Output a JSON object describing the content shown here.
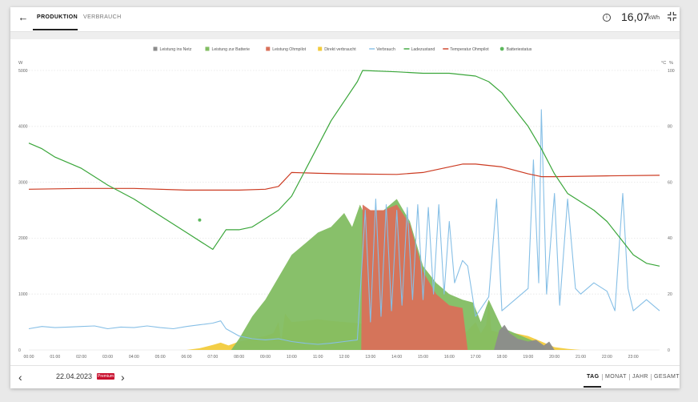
{
  "header": {
    "tabs": [
      {
        "label": "PRODUKTION",
        "active": true
      },
      {
        "label": "VERBRAUCH",
        "active": false
      }
    ],
    "energy_value": "16,07",
    "energy_unit": "kWh"
  },
  "footer": {
    "date": "22.04.2023",
    "badge": "Premium",
    "periods": [
      "TAG",
      "MONAT",
      "JAHR",
      "GESAMT"
    ],
    "active_period": "TAG"
  },
  "chart_data": {
    "type": "area",
    "legend_position": "top-center",
    "legend": [
      {
        "name": "Leistung ins Netz",
        "color": "#8c8c8c",
        "marker": "square"
      },
      {
        "name": "Leistung zur Batterie",
        "color": "#82bd62",
        "marker": "square"
      },
      {
        "name": "Leistung Ohmpilot",
        "color": "#d9705a",
        "marker": "square"
      },
      {
        "name": "Direkt verbraucht",
        "color": "#f2cb3c",
        "marker": "square"
      },
      {
        "name": "Verbrauch",
        "color": "#86bfe6",
        "marker": "line"
      },
      {
        "name": "Ladezustand",
        "color": "#3aa63a",
        "marker": "line"
      },
      {
        "name": "Temperatur Ohmpilot",
        "color": "#cc3b22",
        "marker": "line"
      },
      {
        "name": "Batteriestatus",
        "color": "#5cb85c",
        "marker": "dot"
      }
    ],
    "y_left": {
      "label": "W",
      "min": 0,
      "max": 5000,
      "ticks": [
        0,
        1000,
        2000,
        3000,
        4000,
        5000
      ]
    },
    "y_right": {
      "label1": "°C",
      "label2": "%",
      "min": 0,
      "max": 100,
      "ticks": [
        0,
        20,
        40,
        60,
        80,
        100
      ]
    },
    "x_ticks": [
      "00:00",
      "01:00",
      "02:00",
      "03:00",
      "04:00",
      "05:00",
      "06:00",
      "07:00",
      "08:00",
      "09:00",
      "10:00",
      "11:00",
      "12:00",
      "13:00",
      "14:00",
      "15:00",
      "16:00",
      "17:00",
      "18:00",
      "19:00",
      "20:00",
      "21:00",
      "22:00",
      "23:00"
    ],
    "grid": true,
    "series": [
      {
        "name": "Direkt verbraucht",
        "axis": "left",
        "points": [
          [
            6.0,
            0
          ],
          [
            6.5,
            30
          ],
          [
            7.0,
            90
          ],
          [
            7.3,
            130
          ],
          [
            7.6,
            80
          ],
          [
            8.0,
            150
          ],
          [
            8.5,
            200
          ],
          [
            9.0,
            250
          ],
          [
            9.3,
            300
          ],
          [
            9.5,
            500
          ],
          [
            9.6,
            150
          ],
          [
            9.75,
            650
          ],
          [
            10.0,
            500
          ],
          [
            10.5,
            520
          ],
          [
            11.0,
            550
          ],
          [
            11.5,
            520
          ],
          [
            12.0,
            500
          ],
          [
            12.5,
            480
          ],
          [
            13.0,
            450
          ],
          [
            13.5,
            380
          ],
          [
            14.0,
            350
          ],
          [
            14.5,
            330
          ],
          [
            15.0,
            310
          ],
          [
            15.5,
            290
          ],
          [
            16.0,
            270
          ],
          [
            16.5,
            250
          ],
          [
            17.0,
            500
          ],
          [
            17.2,
            300
          ],
          [
            17.4,
            450
          ],
          [
            17.5,
            900
          ],
          [
            17.6,
            350
          ],
          [
            18.0,
            300
          ],
          [
            18.5,
            300
          ],
          [
            19.0,
            250
          ],
          [
            19.5,
            150
          ],
          [
            20.0,
            50
          ],
          [
            20.5,
            20
          ],
          [
            21.0,
            0
          ]
        ]
      },
      {
        "name": "Leistung zur Batterie",
        "axis": "left",
        "points": [
          [
            7.7,
            0
          ],
          [
            8.0,
            200
          ],
          [
            8.5,
            600
          ],
          [
            9.0,
            900
          ],
          [
            9.5,
            1300
          ],
          [
            10.0,
            1700
          ],
          [
            10.5,
            1900
          ],
          [
            11.0,
            2100
          ],
          [
            11.5,
            2200
          ],
          [
            12.0,
            2450
          ],
          [
            12.3,
            2200
          ],
          [
            12.6,
            2600
          ],
          [
            12.7,
            2500
          ],
          [
            13.0,
            2500
          ],
          [
            13.5,
            2500
          ],
          [
            14.0,
            2700
          ],
          [
            14.5,
            2300
          ],
          [
            15.0,
            1500
          ],
          [
            15.5,
            1200
          ],
          [
            16.0,
            1000
          ],
          [
            16.5,
            900
          ],
          [
            16.9,
            850
          ],
          [
            17.2,
            500
          ],
          [
            17.5,
            900
          ],
          [
            18.0,
            400
          ],
          [
            18.5,
            300
          ],
          [
            19.0,
            200
          ],
          [
            19.5,
            100
          ],
          [
            19.7,
            0
          ]
        ]
      },
      {
        "name": "Leistung Ohmpilot",
        "axis": "left",
        "points": [
          [
            12.65,
            0
          ],
          [
            12.7,
            2600
          ],
          [
            13.0,
            2500
          ],
          [
            13.5,
            2500
          ],
          [
            14.0,
            2600
          ],
          [
            14.5,
            2250
          ],
          [
            15.0,
            1400
          ],
          [
            15.5,
            1000
          ],
          [
            16.0,
            800
          ],
          [
            16.5,
            750
          ],
          [
            16.7,
            0
          ]
        ]
      },
      {
        "name": "Leistung ins Netz",
        "axis": "left",
        "points": [
          [
            17.7,
            0
          ],
          [
            17.9,
            350
          ],
          [
            18.1,
            450
          ],
          [
            18.3,
            300
          ],
          [
            18.6,
            200
          ],
          [
            19.0,
            150
          ],
          [
            19.3,
            180
          ],
          [
            19.6,
            80
          ],
          [
            19.8,
            150
          ],
          [
            20.0,
            0
          ]
        ]
      },
      {
        "name": "Verbrauch",
        "axis": "left",
        "points": [
          [
            0.0,
            380
          ],
          [
            0.5,
            420
          ],
          [
            1.0,
            400
          ],
          [
            1.5,
            410
          ],
          [
            2.0,
            420
          ],
          [
            2.5,
            430
          ],
          [
            3.0,
            380
          ],
          [
            3.5,
            410
          ],
          [
            4.0,
            400
          ],
          [
            4.5,
            430
          ],
          [
            5.0,
            400
          ],
          [
            5.5,
            380
          ],
          [
            6.0,
            420
          ],
          [
            6.5,
            450
          ],
          [
            7.0,
            480
          ],
          [
            7.3,
            520
          ],
          [
            7.5,
            380
          ],
          [
            8.0,
            250
          ],
          [
            8.5,
            200
          ],
          [
            9.0,
            180
          ],
          [
            9.5,
            200
          ],
          [
            10.0,
            150
          ],
          [
            10.5,
            120
          ],
          [
            11.0,
            100
          ],
          [
            11.5,
            120
          ],
          [
            12.0,
            150
          ],
          [
            12.5,
            180
          ],
          [
            12.8,
            2500
          ],
          [
            13.0,
            500
          ],
          [
            13.2,
            2700
          ],
          [
            13.4,
            600
          ],
          [
            13.6,
            2600
          ],
          [
            13.8,
            700
          ],
          [
            14.0,
            2500
          ],
          [
            14.2,
            800
          ],
          [
            14.4,
            2550
          ],
          [
            14.6,
            900
          ],
          [
            14.8,
            2600
          ],
          [
            15.0,
            900
          ],
          [
            15.2,
            2550
          ],
          [
            15.4,
            1000
          ],
          [
            15.6,
            2600
          ],
          [
            15.8,
            1000
          ],
          [
            16.0,
            2300
          ],
          [
            16.2,
            1200
          ],
          [
            16.5,
            1600
          ],
          [
            16.7,
            1500
          ],
          [
            17.0,
            600
          ],
          [
            17.5,
            950
          ],
          [
            17.8,
            2700
          ],
          [
            18.0,
            700
          ],
          [
            18.5,
            900
          ],
          [
            19.0,
            1100
          ],
          [
            19.2,
            3400
          ],
          [
            19.4,
            1200
          ],
          [
            19.5,
            4300
          ],
          [
            19.7,
            1000
          ],
          [
            20.0,
            2800
          ],
          [
            20.2,
            800
          ],
          [
            20.5,
            2700
          ],
          [
            20.8,
            1100
          ],
          [
            21.0,
            1000
          ],
          [
            21.5,
            1200
          ],
          [
            22.0,
            1050
          ],
          [
            22.3,
            700
          ],
          [
            22.6,
            2800
          ],
          [
            22.8,
            1100
          ],
          [
            23.0,
            700
          ],
          [
            23.5,
            900
          ],
          [
            24.0,
            700
          ]
        ]
      },
      {
        "name": "Temperatur Ohmpilot",
        "axis": "right",
        "points": [
          [
            0.0,
            57.5
          ],
          [
            2.0,
            57.8
          ],
          [
            4.0,
            57.8
          ],
          [
            6.0,
            57.2
          ],
          [
            8.0,
            57.2
          ],
          [
            9.0,
            57.5
          ],
          [
            9.5,
            58.5
          ],
          [
            10.0,
            63.5
          ],
          [
            11.0,
            63.2
          ],
          [
            12.0,
            63.0
          ],
          [
            14.0,
            62.8
          ],
          [
            15.0,
            63.5
          ],
          [
            16.0,
            65.5
          ],
          [
            16.5,
            66.5
          ],
          [
            17.0,
            66.5
          ],
          [
            18.0,
            65.5
          ],
          [
            19.0,
            63.0
          ],
          [
            19.5,
            62.0
          ],
          [
            20.0,
            62.0
          ],
          [
            22.0,
            62.3
          ],
          [
            24.0,
            62.5
          ]
        ]
      },
      {
        "name": "Ladezustand",
        "axis": "right",
        "points": [
          [
            0.0,
            74
          ],
          [
            0.5,
            72
          ],
          [
            1.0,
            69
          ],
          [
            2.0,
            65
          ],
          [
            3.0,
            59
          ],
          [
            4.0,
            54
          ],
          [
            5.0,
            48
          ],
          [
            6.0,
            42
          ],
          [
            7.0,
            36
          ],
          [
            7.5,
            43
          ],
          [
            8.0,
            43
          ],
          [
            8.5,
            44
          ],
          [
            9.0,
            47
          ],
          [
            9.5,
            50
          ],
          [
            10.0,
            55
          ],
          [
            10.5,
            64
          ],
          [
            11.0,
            73
          ],
          [
            11.5,
            82
          ],
          [
            12.0,
            89
          ],
          [
            12.5,
            96
          ],
          [
            12.7,
            100
          ],
          [
            14.0,
            99.5
          ],
          [
            15.0,
            99
          ],
          [
            16.0,
            99
          ],
          [
            17.0,
            98
          ],
          [
            17.5,
            96
          ],
          [
            18.0,
            92
          ],
          [
            18.5,
            86
          ],
          [
            19.0,
            80
          ],
          [
            19.5,
            72
          ],
          [
            20.0,
            63
          ],
          [
            20.5,
            56
          ],
          [
            21.0,
            53
          ],
          [
            21.5,
            50
          ],
          [
            22.0,
            46
          ],
          [
            22.5,
            40
          ],
          [
            23.0,
            34
          ],
          [
            23.5,
            31
          ],
          [
            24.0,
            30
          ]
        ]
      },
      {
        "name": "Batteriestatus",
        "axis": "right",
        "points": [
          [
            6.5,
            46.5
          ]
        ]
      }
    ]
  }
}
